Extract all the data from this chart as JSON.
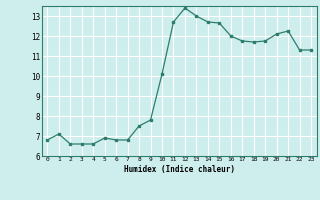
{
  "x": [
    0,
    1,
    2,
    3,
    4,
    5,
    6,
    7,
    8,
    9,
    10,
    11,
    12,
    13,
    14,
    15,
    16,
    17,
    18,
    19,
    20,
    21,
    22,
    23
  ],
  "y": [
    6.8,
    7.1,
    6.6,
    6.6,
    6.6,
    6.9,
    6.8,
    6.8,
    7.5,
    7.8,
    10.1,
    12.7,
    13.4,
    13.0,
    12.7,
    12.65,
    12.0,
    11.75,
    11.7,
    11.75,
    12.1,
    12.25,
    11.3,
    11.3
  ],
  "xlabel": "Humidex (Indice chaleur)",
  "ylim": [
    6,
    13.5
  ],
  "xlim": [
    -0.5,
    23.5
  ],
  "yticks": [
    6,
    7,
    8,
    9,
    10,
    11,
    12,
    13
  ],
  "xticks": [
    0,
    1,
    2,
    3,
    4,
    5,
    6,
    7,
    8,
    9,
    10,
    11,
    12,
    13,
    14,
    15,
    16,
    17,
    18,
    19,
    20,
    21,
    22,
    23
  ],
  "line_color": "#2d7d6d",
  "bg_color": "#ceeeed",
  "grid_color": "#ffffff"
}
